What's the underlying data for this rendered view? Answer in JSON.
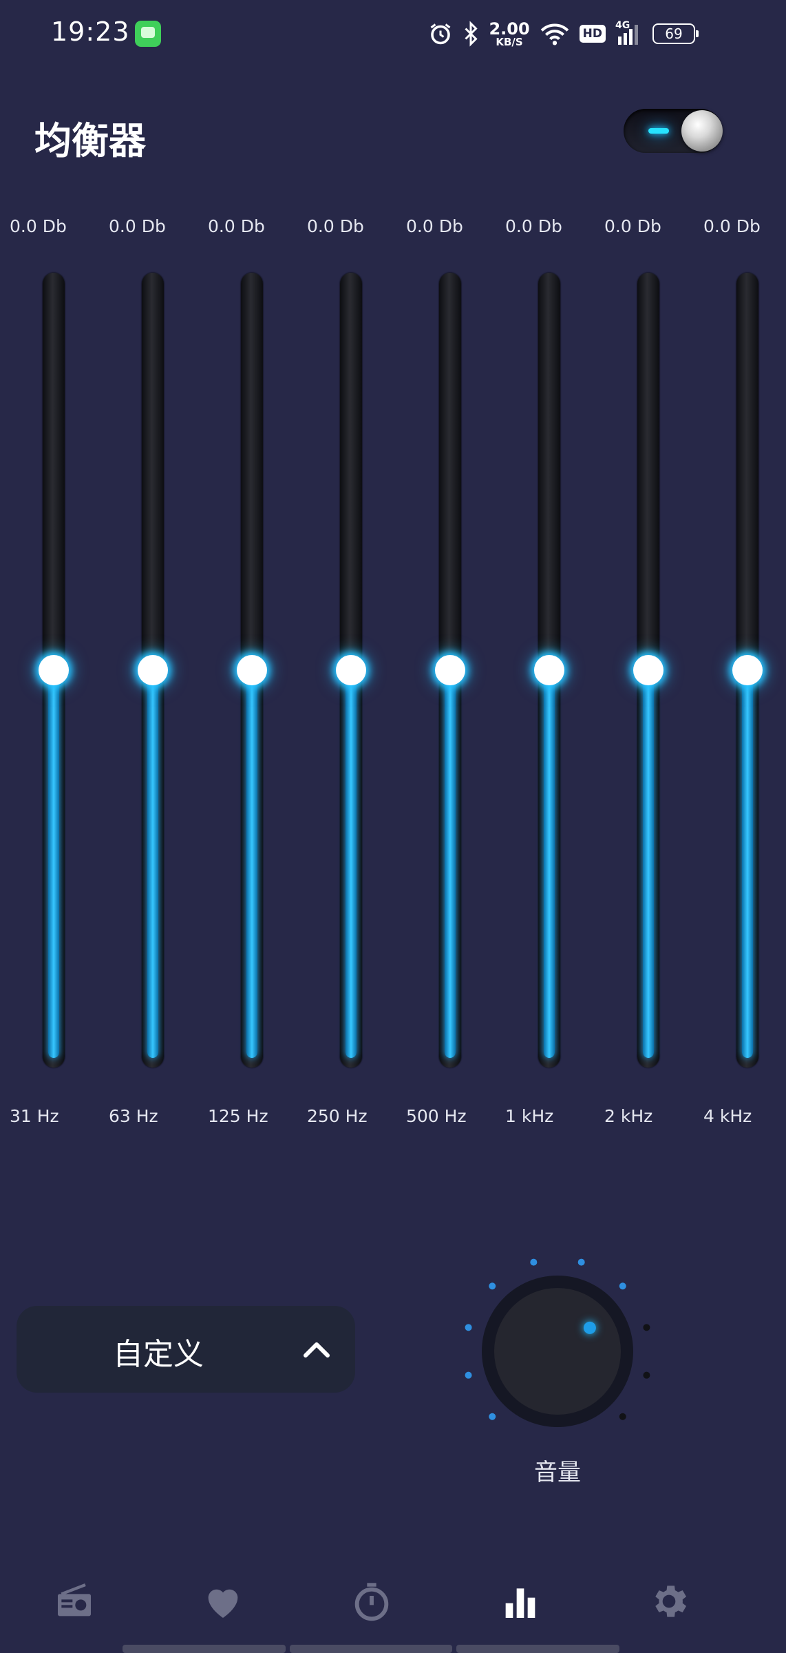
{
  "status_bar": {
    "time": "19:23",
    "net_speed_value": "2.00",
    "net_speed_unit": "KB/S",
    "hd": "HD",
    "signal": "4G",
    "battery": "69",
    "icons": [
      "messaging-app-icon",
      "alarm-icon",
      "bluetooth-icon",
      "wifi-icon",
      "hd-icon",
      "signal-icon",
      "battery-icon"
    ]
  },
  "header": {
    "title": "均衡器",
    "toggle_on": true
  },
  "equalizer": {
    "bands": [
      {
        "gain": "0.0 Db",
        "freq": "31 Hz",
        "level": 0.5
      },
      {
        "gain": "0.0 Db",
        "freq": "63 Hz",
        "level": 0.5
      },
      {
        "gain": "0.0 Db",
        "freq": "125 Hz",
        "level": 0.5
      },
      {
        "gain": "0.0 Db",
        "freq": "250 Hz",
        "level": 0.5
      },
      {
        "gain": "0.0 Db",
        "freq": "500 Hz",
        "level": 0.5
      },
      {
        "gain": "0.0 Db",
        "freq": "1 kHz",
        "level": 0.5
      },
      {
        "gain": "0.0 Db",
        "freq": "2 kHz",
        "level": 0.5
      },
      {
        "gain": "0.0 Db",
        "freq": "4 kHz",
        "level": 0.5
      }
    ]
  },
  "preset": {
    "label": "自定义",
    "icon": "chevron-up-icon"
  },
  "volume": {
    "label": "音量",
    "level": 0.7
  },
  "bottom_nav": {
    "items": [
      {
        "name": "radio-icon",
        "active": false
      },
      {
        "name": "heart-icon",
        "active": false
      },
      {
        "name": "timer-icon",
        "active": false
      },
      {
        "name": "equalizer-icon",
        "active": true
      },
      {
        "name": "gear-icon",
        "active": false
      }
    ]
  },
  "colors": {
    "background": "#272848",
    "accent": "#27c3ff",
    "inactive_icon": "#6d6f88"
  }
}
